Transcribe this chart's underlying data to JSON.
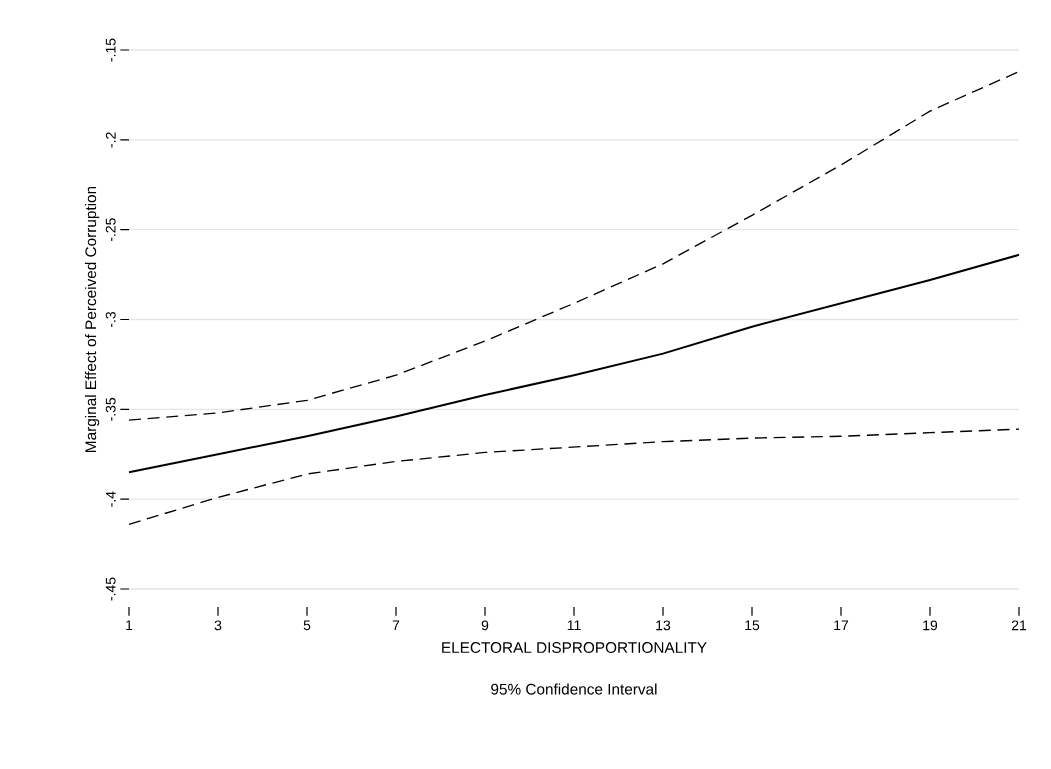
{
  "chart_data": {
    "type": "line",
    "xlabel": "ELECTORAL DISPROPORTIONALITY",
    "ylabel": "Marginal Effect of Perceived Corruption",
    "annotations": [
      "95% Confidence Interval"
    ],
    "x": [
      1,
      3,
      5,
      7,
      9,
      11,
      13,
      15,
      17,
      19,
      21
    ],
    "series": [
      {
        "color": "#000000",
        "line_style": "solid",
        "values": [
          -0.385,
          -0.375,
          -0.365,
          -0.354,
          -0.342,
          -0.331,
          -0.319,
          -0.304,
          -0.291,
          -0.278,
          -0.264
        ]
      },
      {
        "color": "#000000",
        "line_style": "dashed",
        "values": [
          -0.356,
          -0.352,
          -0.345,
          -0.331,
          -0.312,
          -0.291,
          -0.269,
          -0.242,
          -0.214,
          -0.184,
          -0.162
        ]
      },
      {
        "color": "#000000",
        "line_style": "dashed",
        "values": [
          -0.414,
          -0.399,
          -0.386,
          -0.379,
          -0.374,
          -0.371,
          -0.368,
          -0.366,
          -0.365,
          -0.363,
          -0.361
        ]
      }
    ],
    "xlim": [
      1,
      21
    ],
    "xticks": [
      1,
      3,
      5,
      7,
      9,
      11,
      13,
      15,
      17,
      19,
      21
    ],
    "ylim": [
      -0.45,
      -0.15
    ],
    "yticks": [
      {
        "value": -0.45,
        "label": "-.45"
      },
      {
        "value": -0.4,
        "label": "-.4"
      },
      {
        "value": -0.35,
        "label": "-.35"
      },
      {
        "value": -0.3,
        "label": "-.3"
      },
      {
        "value": -0.25,
        "label": "-.25"
      },
      {
        "value": -0.2,
        "label": "-.2"
      },
      {
        "value": -0.15,
        "label": "-.15"
      }
    ],
    "grid": "y",
    "marker": "none"
  }
}
